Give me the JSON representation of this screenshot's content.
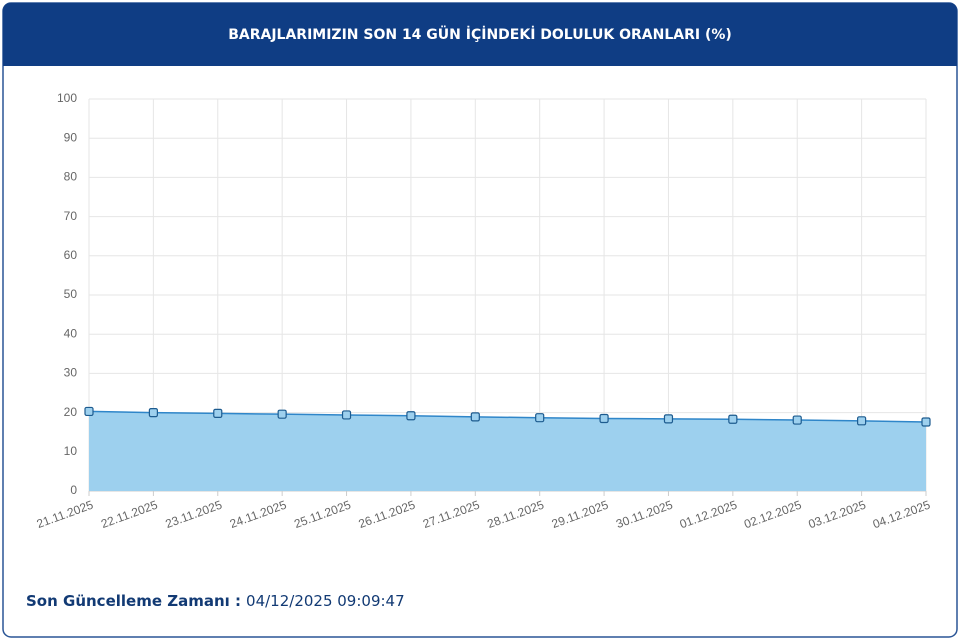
{
  "chart_data": {
    "type": "area",
    "title": "BARAJLARIMIZIN SON 14 GÜN İÇİNDEKİ DOLULUK ORANLARI (%)",
    "categories": [
      "21.11.2025",
      "22.11.2025",
      "23.11.2025",
      "24.11.2025",
      "25.11.2025",
      "26.11.2025",
      "27.11.2025",
      "28.11.2025",
      "29.11.2025",
      "30.11.2025",
      "01.12.2025",
      "02.12.2025",
      "03.12.2025",
      "04.12.2025"
    ],
    "values": [
      20.3,
      20.0,
      19.8,
      19.6,
      19.4,
      19.2,
      18.9,
      18.7,
      18.5,
      18.4,
      18.3,
      18.1,
      17.9,
      17.6
    ],
    "color": "#2f86c9",
    "fill": "#9dd0ee",
    "ylim": [
      0,
      100
    ],
    "yticks": [
      0,
      10,
      20,
      30,
      40,
      50,
      60,
      70,
      80,
      90,
      100
    ],
    "grid": true
  },
  "footer": {
    "label": "Son Güncelleme Zamanı :",
    "value": "04/12/2025 09:09:47"
  }
}
